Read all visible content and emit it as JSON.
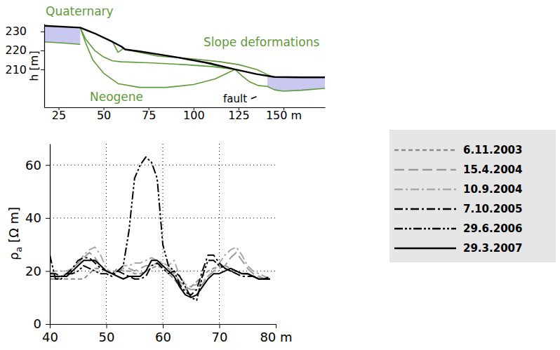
{
  "chart_data": [
    {
      "type": "line",
      "y_label": "h [m]",
      "xlim": [
        17,
        173
      ],
      "ylim": [
        190,
        234
      ],
      "xticks": [
        25,
        50,
        75,
        100,
        125,
        {
          "value": 150,
          "label": "150 m"
        }
      ],
      "yticks": [
        210,
        220,
        230
      ],
      "annotations": [
        "Quaternary",
        "Slope deformations",
        "Neogene",
        "fault"
      ],
      "series": [
        {
          "type": "area",
          "color": "#c8c8f0",
          "x": [
            17,
            27,
            37
          ],
          "values": [
            233,
            232.6,
            232
          ],
          "low": [
            224.5,
            223.9,
            223.2
          ]
        },
        {
          "type": "area",
          "color": "#c8c8f0",
          "x": [
            141,
            145,
            150,
            160,
            173
          ],
          "values": [
            206.6,
            206,
            205.8,
            205.8,
            205.8
          ],
          "low": [
            201,
            199.2,
            198.5,
            199,
            200
          ]
        },
        {
          "type": "line",
          "color": "#5f9a3a",
          "x": [
            17,
            27,
            37
          ],
          "values": [
            224.5,
            223.9,
            223.2
          ]
        },
        {
          "type": "line",
          "color": "#5f9a3a",
          "x": [
            37,
            40,
            44,
            50,
            58,
            70,
            85,
            100,
            112,
            123
          ],
          "values": [
            232,
            224,
            215,
            208,
            202.5,
            200.5,
            200.5,
            202,
            205,
            210
          ]
        },
        {
          "type": "line",
          "color": "#5f9a3a",
          "x": [
            37,
            40,
            45,
            50,
            55,
            60,
            75,
            95,
            110,
            123
          ],
          "values": [
            232,
            226,
            220,
            216.5,
            214.5,
            214,
            213.5,
            212.5,
            211.5,
            210
          ]
        },
        {
          "type": "line",
          "color": "#5f9a3a",
          "x": [
            62,
            80,
            100,
            115,
            125,
            135,
            143
          ],
          "values": [
            220.5,
            217,
            215.5,
            214,
            212.5,
            210,
            206.4
          ]
        },
        {
          "type": "line",
          "color": "#5f9a3a",
          "x": [
            55,
            58,
            61
          ],
          "values": [
            224.5,
            219,
            221
          ]
        },
        {
          "type": "line",
          "color": "#5f9a3a",
          "x": [
            106,
            112,
            118
          ],
          "values": [
            213.7,
            212,
            211
          ]
        },
        {
          "type": "line",
          "color": "#5f9a3a",
          "x": [
            123,
            127,
            131,
            136,
            141
          ],
          "values": [
            210,
            206.5,
            203.5,
            201.5,
            201
          ]
        },
        {
          "type": "line",
          "color": "#5f9a3a",
          "x": [
            141,
            145,
            150,
            160,
            173
          ],
          "values": [
            201,
            199.2,
            198.5,
            199,
            200
          ]
        },
        {
          "type": "line",
          "color": "#000000",
          "x": [
            17,
            37,
            45,
            55,
            60,
            62,
            70,
            90,
            110,
            123,
            135,
            145,
            160,
            173
          ],
          "values": [
            233,
            232,
            229,
            224.5,
            222,
            220.5,
            219.5,
            216.5,
            213,
            210,
            207.5,
            206,
            205.8,
            205.8
          ]
        },
        {
          "type": "line",
          "color": "#000000",
          "x": [
            132,
            135
          ],
          "values": [
            194.5,
            195.6
          ]
        }
      ]
    },
    {
      "type": "line",
      "y_label": "ρa [Ω m]",
      "xlim": [
        40,
        80
      ],
      "ylim": [
        0,
        68
      ],
      "xticks": [
        40,
        50,
        60,
        70,
        {
          "value": 80,
          "label": "80 m"
        }
      ],
      "yticks": [
        0,
        20,
        40,
        60
      ],
      "grid": true,
      "legend": "right",
      "x": [
        40,
        41,
        42,
        43,
        44,
        45,
        46,
        47,
        48,
        49,
        50,
        51,
        52,
        53,
        54,
        55,
        56,
        57,
        58,
        59,
        60,
        61,
        62,
        63,
        64,
        65,
        66,
        67,
        68,
        69,
        70,
        71,
        72,
        73,
        74,
        75,
        76,
        77,
        78,
        79
      ],
      "series": [
        {
          "name": "6.11.2003",
          "color": "#8c8c8c",
          "line_style": "dashed",
          "values": [
            17,
            17,
            17,
            17,
            17,
            17,
            17,
            19,
            21,
            21,
            20,
            19,
            21,
            20,
            20,
            19,
            19,
            20,
            21,
            22,
            21,
            19,
            17,
            14,
            13,
            14,
            16,
            18,
            20,
            21,
            22,
            22,
            21,
            20,
            19,
            19,
            18,
            18,
            17,
            17
          ]
        },
        {
          "name": "15.4.2004",
          "color": "#9a9a9a",
          "line_style": "longdash",
          "values": [
            17,
            17,
            18,
            19,
            21,
            23,
            25,
            27,
            25,
            22,
            20,
            19,
            20,
            21,
            21,
            20,
            21,
            22,
            22,
            23,
            22,
            21,
            19,
            16,
            14,
            13,
            13,
            15,
            18,
            20,
            21,
            22,
            25,
            27,
            24,
            21,
            19,
            18,
            17,
            17
          ]
        },
        {
          "name": "10.9.2004",
          "color": "#a8a8a8",
          "line_style": "dashdot",
          "values": [
            19,
            20,
            20,
            20,
            21,
            23,
            26,
            28,
            29,
            26,
            21,
            19,
            20,
            22,
            22,
            23,
            23,
            24,
            25,
            24,
            23,
            22,
            24,
            18,
            15,
            14,
            15,
            16,
            18,
            20,
            23,
            26,
            28,
            29,
            26,
            22,
            20,
            19,
            18,
            17
          ]
        },
        {
          "name": "7.10.2005",
          "color": "#000000",
          "line_style": "dashdot",
          "values": [
            19,
            19,
            18,
            19,
            21,
            24,
            25,
            25,
            23,
            21,
            20,
            19,
            20,
            19,
            18,
            17,
            17,
            18,
            22,
            23,
            21,
            19,
            20,
            15,
            12,
            11,
            13,
            20,
            26,
            26,
            23,
            21,
            20,
            19,
            18,
            18,
            18,
            17,
            17,
            17
          ]
        },
        {
          "name": "29.6.2006",
          "color": "#000000",
          "line_style": "dashdotdot",
          "values": [
            26,
            17,
            17,
            19,
            19,
            20,
            22,
            21,
            20,
            19,
            19,
            18,
            20,
            22,
            35,
            55,
            60,
            63,
            61,
            55,
            30,
            22,
            20,
            18,
            14,
            10,
            9,
            18,
            24,
            24,
            22,
            21,
            20,
            20,
            19,
            19,
            18,
            17,
            17,
            18
          ]
        },
        {
          "name": "29.3.2007",
          "color": "#000000",
          "line_style": "solid",
          "values": [
            18,
            18,
            18,
            18,
            20,
            22,
            24,
            24,
            24,
            22,
            20,
            19,
            18,
            17,
            18,
            18,
            18,
            20,
            24,
            24,
            22,
            20,
            18,
            14,
            11,
            10,
            11,
            14,
            17,
            19,
            19,
            20,
            21,
            20,
            19,
            19,
            18,
            17,
            17,
            17
          ]
        }
      ]
    }
  ]
}
